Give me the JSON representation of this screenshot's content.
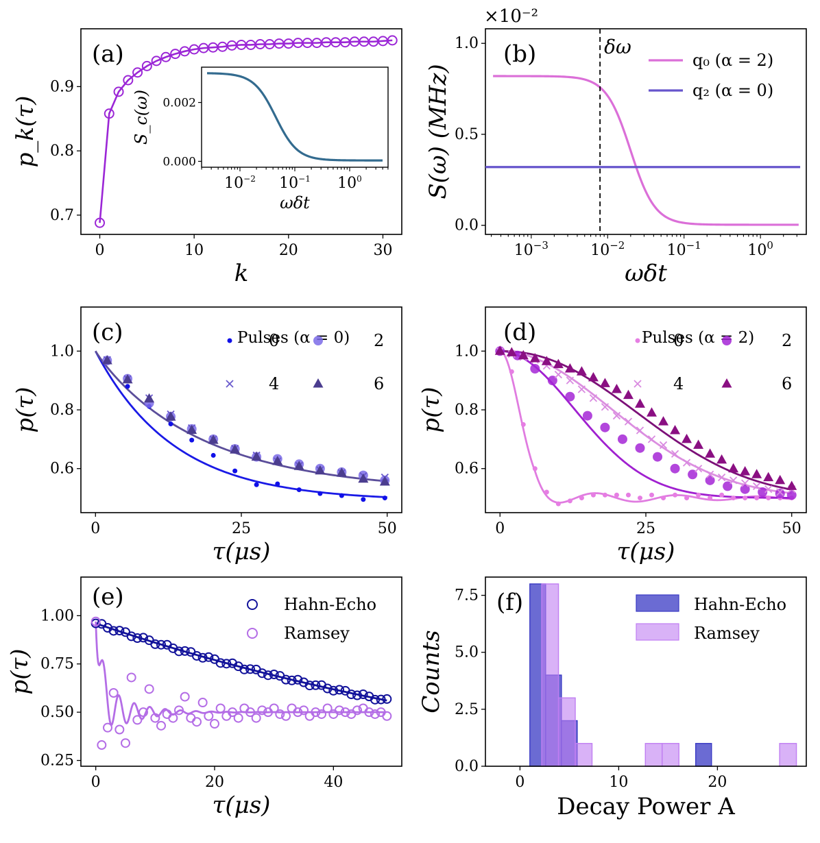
{
  "chart_data": [
    {
      "id": "a",
      "type": "line",
      "panel_label": "(a)",
      "xlabel": "k",
      "ylabel": "p_k(τ)",
      "xlim": [
        -2,
        32
      ],
      "ylim": [
        0.67,
        0.99
      ],
      "xticks": [
        0,
        10,
        20,
        30
      ],
      "xtick_labels": [
        "0",
        "10",
        "20",
        "30"
      ],
      "yticks": [
        0.7,
        0.8,
        0.9
      ],
      "ytick_labels": [
        "0.7",
        "0.8",
        "0.9"
      ],
      "color": "#9b26d6",
      "x": [
        0,
        1,
        2,
        3,
        4,
        5,
        6,
        7,
        8,
        9,
        10,
        11,
        12,
        13,
        14,
        15,
        16,
        17,
        18,
        19,
        20,
        21,
        22,
        23,
        24,
        25,
        26,
        27,
        28,
        29,
        30,
        31
      ],
      "values": [
        0.688,
        0.858,
        0.892,
        0.91,
        0.922,
        0.932,
        0.94,
        0.946,
        0.951,
        0.955,
        0.958,
        0.96,
        0.961,
        0.962,
        0.964,
        0.965,
        0.965,
        0.966,
        0.966,
        0.967,
        0.967,
        0.968,
        0.968,
        0.968,
        0.969,
        0.969,
        0.969,
        0.97,
        0.97,
        0.97,
        0.971,
        0.972
      ],
      "inset": {
        "type": "line",
        "xlabel": "ωδt",
        "ylabel": "S_c(ω)",
        "xscale": "log",
        "xlim_log10": [
          -2.7,
          0.7
        ],
        "ylim": [
          -0.0002,
          0.0032
        ],
        "yticks": [
          0.0,
          0.002
        ],
        "ytick_labels": [
          "0.000",
          "0.002"
        ],
        "xticks_log10": [
          -2,
          -1,
          0
        ],
        "color": "#336b8f",
        "plateau": 0.003,
        "floor": 3e-05,
        "center_log10": -1.35,
        "width": 0.2
      }
    },
    {
      "id": "b",
      "type": "line",
      "panel_label": "(b)",
      "xlabel": "ωδt",
      "ylabel": "S(ω)  (MHz)",
      "offset_label": "×10⁻²",
      "xscale": "log",
      "xlim_log10": [
        -3.6,
        0.6
      ],
      "ylim": [
        -0.05,
        1.08
      ],
      "yticks": [
        0.0,
        0.5,
        1.0
      ],
      "ytick_labels": [
        "0.0",
        "0.5",
        "1.0"
      ],
      "xticks_log10": [
        -3,
        -2,
        -1,
        0
      ],
      "vline_log10": -2.1,
      "vline_label": "δω",
      "series": [
        {
          "name": "q₀ (α = 2)",
          "color": "#db6fd8",
          "kind": "sigmoid",
          "plateau": 0.82,
          "floor": 0.003,
          "center_log10": -1.7,
          "width": 0.16
        },
        {
          "name": "q₂ (α = 0)",
          "color": "#6655cc",
          "kind": "constant",
          "value": 0.32
        }
      ]
    },
    {
      "id": "c",
      "type": "scatter",
      "panel_label": "(c)",
      "xlabel": "τ(μs)",
      "ylabel": "p(τ)",
      "xlim": [
        -2.5,
        52.5
      ],
      "ylim": [
        0.45,
        1.15
      ],
      "xticks": [
        0,
        25,
        50
      ],
      "xtick_labels": [
        "0",
        "25",
        "50"
      ],
      "yticks": [
        0.6,
        0.8,
        1.0
      ],
      "ytick_labels": [
        "0.6",
        "0.8",
        "1.0"
      ],
      "legend_title": "Pulses (α = 0)",
      "x": [
        2,
        5.5,
        9.2,
        12.9,
        16.5,
        20.2,
        23.9,
        27.6,
        31.2,
        34.9,
        38.5,
        42.2,
        45.9,
        49.6
      ],
      "series": [
        {
          "name": "0",
          "marker": "dot",
          "color": "#1010e8",
          "values": [
            0.967,
            0.88,
            0.812,
            0.752,
            0.697,
            0.645,
            0.592,
            0.545,
            0.548,
            0.528,
            0.515,
            0.508,
            0.495,
            0.5
          ]
        },
        {
          "name": "2",
          "marker": "circle",
          "color": "#7b6be8",
          "values": [
            0.968,
            0.906,
            0.823,
            0.777,
            0.735,
            0.7,
            0.667,
            0.64,
            0.633,
            0.615,
            0.6,
            0.588,
            0.577,
            0.56
          ]
        },
        {
          "name": "4",
          "marker": "x",
          "color": "#6a5acd",
          "values": [
            0.97,
            0.905,
            0.84,
            0.785,
            0.738,
            0.7,
            0.668,
            0.645,
            0.625,
            0.61,
            0.595,
            0.585,
            0.575,
            0.57
          ]
        },
        {
          "name": "6",
          "marker": "triangle",
          "color": "#4b3d8f",
          "values": [
            0.968,
            0.903,
            0.838,
            0.776,
            0.731,
            0.697,
            0.664,
            0.64,
            0.625,
            0.608,
            0.593,
            0.585,
            0.565,
            0.555
          ]
        }
      ],
      "fits": [
        {
          "color": "#1a1ae6",
          "y0": 1.0,
          "yinf": 0.49,
          "tau": 13.5,
          "power": 1.0
        },
        {
          "color": "#5b4e9a",
          "y0": 1.0,
          "yinf": 0.52,
          "tau": 18.5,
          "power": 0.95
        }
      ]
    },
    {
      "id": "d",
      "type": "scatter",
      "panel_label": "(d)",
      "xlabel": "τ(μs)",
      "ylabel": "p(τ)",
      "xlim": [
        -2.5,
        52.5
      ],
      "ylim": [
        0.45,
        1.15
      ],
      "xticks": [
        0,
        25,
        50
      ],
      "xtick_labels": [
        "0",
        "25",
        "50"
      ],
      "yticks": [
        0.6,
        0.8,
        1.0
      ],
      "ytick_labels": [
        "0.6",
        "0.8",
        "1.0"
      ],
      "legend_title": "Pulses (α = 2)",
      "series": [
        {
          "name": "0",
          "marker": "dot",
          "color": "#e67ee3",
          "x": [
            0,
            2,
            4,
            6,
            8,
            10,
            12,
            14,
            16,
            18,
            20,
            22,
            24,
            26,
            28,
            30,
            32,
            34,
            36,
            38,
            40,
            42,
            44,
            46,
            48,
            50
          ],
          "values": [
            1.0,
            0.93,
            0.75,
            0.6,
            0.52,
            0.48,
            0.49,
            0.5,
            0.51,
            0.51,
            0.51,
            0.51,
            0.5,
            0.51,
            0.5,
            0.51,
            0.5,
            0.51,
            0.5,
            0.51,
            0.5,
            0.5,
            0.5,
            0.5,
            0.5,
            0.5
          ]
        },
        {
          "name": "2",
          "marker": "circle",
          "color": "#a526d6",
          "x": [
            0,
            3,
            6,
            9,
            12,
            15,
            18,
            21,
            24,
            27,
            30,
            33,
            36,
            39,
            42,
            45,
            48,
            50
          ],
          "values": [
            1.0,
            0.985,
            0.94,
            0.9,
            0.845,
            0.78,
            0.74,
            0.7,
            0.67,
            0.64,
            0.6,
            0.58,
            0.56,
            0.54,
            0.53,
            0.52,
            0.515,
            0.51
          ]
        },
        {
          "name": "4",
          "marker": "x",
          "color": "#d98ae0",
          "x": [
            0,
            2,
            4,
            6,
            8,
            10,
            12,
            14,
            16,
            18,
            20,
            22,
            24,
            26,
            28,
            30,
            32,
            34,
            36,
            38,
            40,
            42,
            44,
            46,
            48,
            50
          ],
          "values": [
            1.0,
            0.99,
            0.98,
            0.97,
            0.95,
            0.92,
            0.9,
            0.87,
            0.84,
            0.81,
            0.78,
            0.76,
            0.73,
            0.7,
            0.68,
            0.65,
            0.62,
            0.6,
            0.58,
            0.57,
            0.56,
            0.55,
            0.54,
            0.53,
            0.52,
            0.53
          ]
        },
        {
          "name": "6",
          "marker": "triangle",
          "color": "#8a0f82",
          "x": [
            0,
            2,
            4,
            6,
            8,
            10,
            12,
            14,
            16,
            18,
            20,
            22,
            24,
            26,
            28,
            30,
            32,
            34,
            36,
            38,
            40,
            42,
            44,
            46,
            48,
            50
          ],
          "values": [
            1.0,
            0.995,
            0.985,
            0.975,
            0.965,
            0.955,
            0.94,
            0.93,
            0.91,
            0.89,
            0.87,
            0.85,
            0.82,
            0.79,
            0.76,
            0.73,
            0.7,
            0.68,
            0.65,
            0.63,
            0.6,
            0.59,
            0.58,
            0.57,
            0.56,
            0.54
          ]
        }
      ],
      "fits": [
        {
          "color": "#e07ce0",
          "kind": "damped",
          "yinf": 0.5,
          "tau": 4.6,
          "power": 2.0,
          "osc_amp": 0.03,
          "osc_period": 14,
          "osc_decay": 9
        },
        {
          "color": "#a020d0",
          "kind": "stretched",
          "yinf": 0.5,
          "tau": 18.0,
          "power": 2.0
        },
        {
          "color": "#dc90e0",
          "kind": "stretched",
          "yinf": 0.5,
          "tau": 27.0,
          "power": 2.0
        },
        {
          "color": "#7c1078",
          "kind": "stretched",
          "yinf": 0.5,
          "tau": 31.0,
          "power": 2.2
        }
      ]
    },
    {
      "id": "e",
      "type": "scatter",
      "panel_label": "(e)",
      "xlabel": "τ(μs)",
      "ylabel": "p(τ)",
      "xlim": [
        -2.5,
        51.5
      ],
      "ylim": [
        0.22,
        1.2
      ],
      "xticks": [
        0,
        20,
        40
      ],
      "xtick_labels": [
        "0",
        "20",
        "40"
      ],
      "yticks": [
        0.25,
        0.5,
        0.75,
        1.0
      ],
      "ytick_labels": [
        "0.25",
        "0.50",
        "0.75",
        "1.00"
      ],
      "series": [
        {
          "name": "Hahn-Echo",
          "marker": "circle-open",
          "color": "#12129a",
          "tau": 91.0,
          "power": 1.0,
          "noise_amp": 0.008
        },
        {
          "name": "Ramsey",
          "marker": "circle-open",
          "color": "#b46de6",
          "x": [
            0,
            1,
            2,
            3,
            4,
            5,
            6,
            7,
            8,
            9,
            10,
            11,
            12,
            13,
            14,
            15,
            16,
            17,
            18,
            19,
            20,
            21,
            22,
            23,
            24,
            25,
            26,
            27,
            28,
            29,
            30,
            31,
            32,
            33,
            34,
            35,
            36,
            37,
            38,
            39,
            40,
            41,
            42,
            43,
            44,
            45,
            46,
            47,
            48,
            49
          ],
          "values": [
            0.97,
            0.33,
            0.42,
            0.6,
            0.41,
            0.34,
            0.68,
            0.46,
            0.5,
            0.62,
            0.47,
            0.43,
            0.49,
            0.47,
            0.51,
            0.58,
            0.47,
            0.45,
            0.55,
            0.48,
            0.44,
            0.52,
            0.48,
            0.5,
            0.47,
            0.52,
            0.5,
            0.47,
            0.51,
            0.5,
            0.52,
            0.49,
            0.48,
            0.52,
            0.5,
            0.51,
            0.48,
            0.5,
            0.49,
            0.52,
            0.49,
            0.51,
            0.5,
            0.49,
            0.51,
            0.52,
            0.5,
            0.49,
            0.5,
            0.48
          ]
        }
      ],
      "fits": [
        {
          "color": "#12129a",
          "kind": "exp",
          "y0": 0.96,
          "tau": 91.0
        },
        {
          "color": "#b46de6",
          "kind": "ramsey",
          "yinf": 0.5,
          "amp": 0.47,
          "decay": 1.0,
          "osc_amp": 0.17,
          "osc_period": 2.6,
          "osc_decay": 5.0
        }
      ]
    },
    {
      "id": "f",
      "type": "bar",
      "panel_label": "(f)",
      "xlabel": "Decay Power A",
      "ylabel": "Counts",
      "xlim": [
        -3.5,
        29
      ],
      "ylim": [
        0,
        8.3
      ],
      "xticks": [
        0,
        10,
        20
      ],
      "xtick_labels": [
        "0",
        "10",
        "20"
      ],
      "yticks": [
        0.0,
        2.5,
        5.0,
        7.5
      ],
      "ytick_labels": [
        "0.0",
        "2.5",
        "5.0",
        "7.5"
      ],
      "series": [
        {
          "name": "Hahn-Echo",
          "color": "#3a3ac4",
          "opacity": 0.75,
          "bins": [
            [
              1.0,
              2.6,
              8
            ],
            [
              2.6,
              4.2,
              4
            ],
            [
              4.2,
              5.8,
              2
            ],
            [
              17.8,
              19.4,
              1
            ]
          ]
        },
        {
          "name": "Ramsey",
          "color": "#c07ef2",
          "opacity": 0.6,
          "bins": [
            [
              2.2,
              3.9,
              8
            ],
            [
              3.9,
              5.6,
              3
            ],
            [
              5.6,
              7.3,
              1
            ],
            [
              12.7,
              14.4,
              1
            ],
            [
              14.4,
              16.1,
              1
            ],
            [
              26.3,
              28.0,
              1
            ]
          ]
        }
      ]
    }
  ]
}
